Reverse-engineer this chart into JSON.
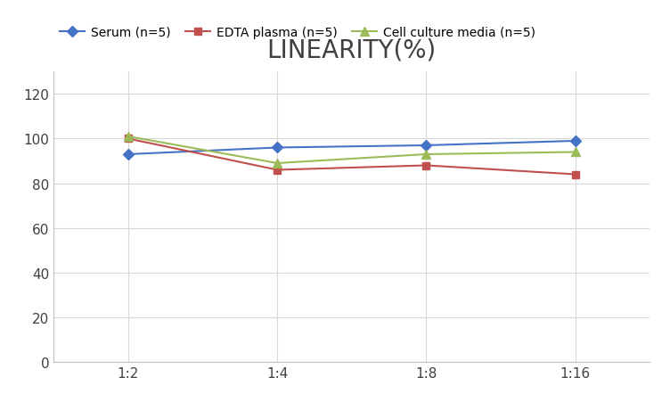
{
  "title": "LINEARITY(%)",
  "x_labels": [
    "1:2",
    "1:4",
    "1:8",
    "1:16"
  ],
  "x_positions": [
    0,
    1,
    2,
    3
  ],
  "series": [
    {
      "label": "Serum (n=5)",
      "color": "#4472C4",
      "marker": "D",
      "markersize": 6,
      "values": [
        93,
        96,
        97,
        99
      ]
    },
    {
      "label": "EDTA plasma (n=5)",
      "color": "#C0504D",
      "marker": "s",
      "markersize": 6,
      "values": [
        100,
        86,
        88,
        84
      ]
    },
    {
      "label": "Cell culture media (n=5)",
      "color": "#9BBB59",
      "marker": "^",
      "markersize": 7,
      "values": [
        101,
        89,
        93,
        94
      ]
    }
  ],
  "ylim": [
    0,
    130
  ],
  "yticks": [
    0,
    20,
    40,
    60,
    80,
    100,
    120
  ],
  "title_fontsize": 20,
  "title_fontweight": "normal",
  "title_color": "#404040",
  "legend_fontsize": 10,
  "tick_fontsize": 11,
  "background_color": "#ffffff",
  "grid_color": "#d8d8d8",
  "linewidth": 1.5
}
